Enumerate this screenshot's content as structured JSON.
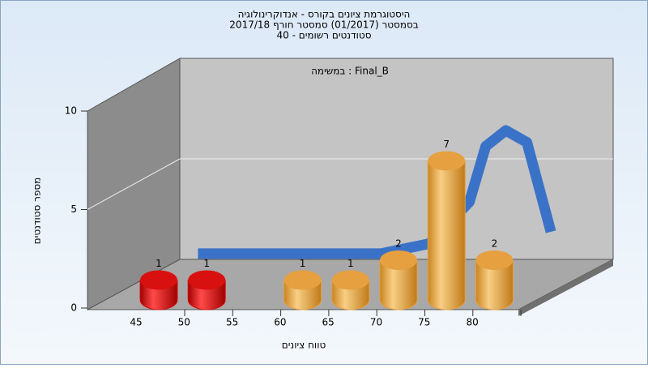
{
  "chart_data": {
    "type": "bar3d",
    "title": "היסטוגרמת ציונים בקורס - אנדוקרינולוגיה",
    "subtitle_lines": [
      "בסמסטר  (01/2017)  סמסטר חורף 2017/18",
      "סטודנטים רשומים - 40"
    ],
    "annotation": "במשימה : Final_B",
    "x_label": "טווח ציונים",
    "y_label": "מספר סטודנטים",
    "categories": [
      "45",
      "50",
      "55",
      "60",
      "65",
      "70",
      "75",
      "80"
    ],
    "values": [
      1,
      1,
      0,
      1,
      1,
      2,
      7,
      2
    ],
    "bar_colors": [
      "#d81010",
      "#d81010",
      "#e6a040",
      "#e6a040",
      "#e6a040",
      "#e6a040",
      "#e6a040",
      "#e6a040"
    ],
    "ylim": [
      0,
      10
    ],
    "yticks": [
      0,
      5,
      10
    ],
    "grid": true,
    "curve": {
      "color": "#3a72c8",
      "x": [
        47.4,
        66.5,
        71.5,
        75.7,
        77.4,
        79.5,
        81.7,
        84.2
      ],
      "values": [
        0.7,
        0.7,
        1.2,
        3.3,
        6.1,
        6.9,
        6.3,
        1.8
      ]
    }
  }
}
